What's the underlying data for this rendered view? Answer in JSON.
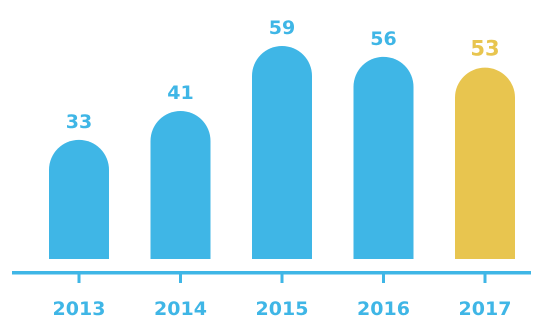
{
  "chart_data": {
    "type": "bar",
    "categories": [
      "2013",
      "2014",
      "2015",
      "2016",
      "2017"
    ],
    "values": [
      33,
      41,
      59,
      56,
      53
    ],
    "value_labels": [
      "33",
      "41",
      "59",
      "56",
      "53"
    ],
    "title": "",
    "xlabel": "",
    "ylabel": "",
    "ylim": [
      0,
      59
    ],
    "grid": false,
    "legend": "none",
    "highlight_index": 4
  },
  "colors": {
    "bar": "#3FB6E6",
    "highlight": "#E8C54F",
    "axis": "#3FB6E6",
    "label": "#3FB6E6",
    "notch": "#ffffff"
  }
}
